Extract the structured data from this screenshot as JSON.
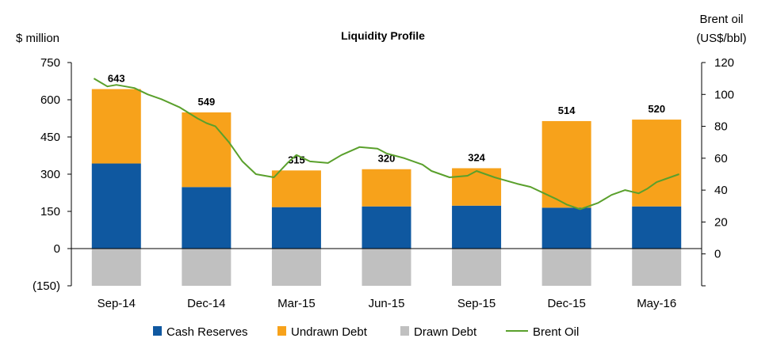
{
  "chart_data": {
    "type": "bar",
    "title": "Liquidity Profile",
    "ylabel_left": "$ million",
    "ylabel_right_line1": "Brent oil",
    "ylabel_right_line2": "(US$/bbl)",
    "categories": [
      "Sep-14",
      "Dec-14",
      "Mar-15",
      "Jun-15",
      "Sep-15",
      "Dec-15",
      "May-16"
    ],
    "ylim_left": [
      -150,
      750
    ],
    "yticks_left": [
      -150,
      0,
      150,
      300,
      450,
      600,
      750
    ],
    "ytick_labels_left": [
      "(150)",
      "0",
      "150",
      "300",
      "450",
      "600",
      "750"
    ],
    "ylim_right": [
      -20,
      120
    ],
    "yticks_right": [
      0,
      20,
      40,
      60,
      80,
      100,
      120
    ],
    "ytick_labels_right": [
      "0",
      "20",
      "40",
      "60",
      "80",
      "100",
      "120"
    ],
    "series": [
      {
        "name": "Cash Reserves",
        "color": "#0f58a0",
        "values": [
          343,
          248,
          167,
          170,
          173,
          165,
          170
        ]
      },
      {
        "name": "Undrawn Debt",
        "color": "#f7a21b",
        "values": [
          300,
          301,
          148,
          150,
          151,
          349,
          350
        ]
      },
      {
        "name": "Drawn Debt",
        "color": "#c0c0c0",
        "values": [
          -150,
          -150,
          -150,
          -150,
          -150,
          -150,
          -150
        ]
      }
    ],
    "totals": [
      "643",
      "549",
      "315",
      "320",
      "324",
      "514",
      "520"
    ],
    "line": {
      "name": "Brent Oil",
      "color": "#5aa02c",
      "x": [
        -0.25,
        -0.1,
        0.0,
        0.2,
        0.35,
        0.5,
        0.7,
        0.9,
        1.0,
        1.1,
        1.25,
        1.4,
        1.55,
        1.75,
        1.9,
        2.0,
        2.15,
        2.35,
        2.5,
        2.7,
        2.9,
        3.0,
        3.2,
        3.4,
        3.5,
        3.7,
        3.9,
        4.0,
        4.2,
        4.45,
        4.6,
        4.75,
        4.9,
        5.0,
        5.15,
        5.35,
        5.5,
        5.65,
        5.8,
        5.9,
        6.0,
        6.1,
        6.25
      ],
      "y": [
        110,
        105,
        106,
        104,
        100,
        97,
        92,
        85,
        82,
        80,
        70,
        58,
        50,
        48,
        57,
        62,
        58,
        57,
        62,
        67,
        66,
        63,
        60,
        56,
        52,
        48,
        49,
        52,
        48,
        44,
        42,
        38,
        34,
        31,
        28,
        32,
        37,
        40,
        38,
        41,
        45,
        47,
        50
      ]
    },
    "legend_position": "bottom",
    "grid": false
  }
}
